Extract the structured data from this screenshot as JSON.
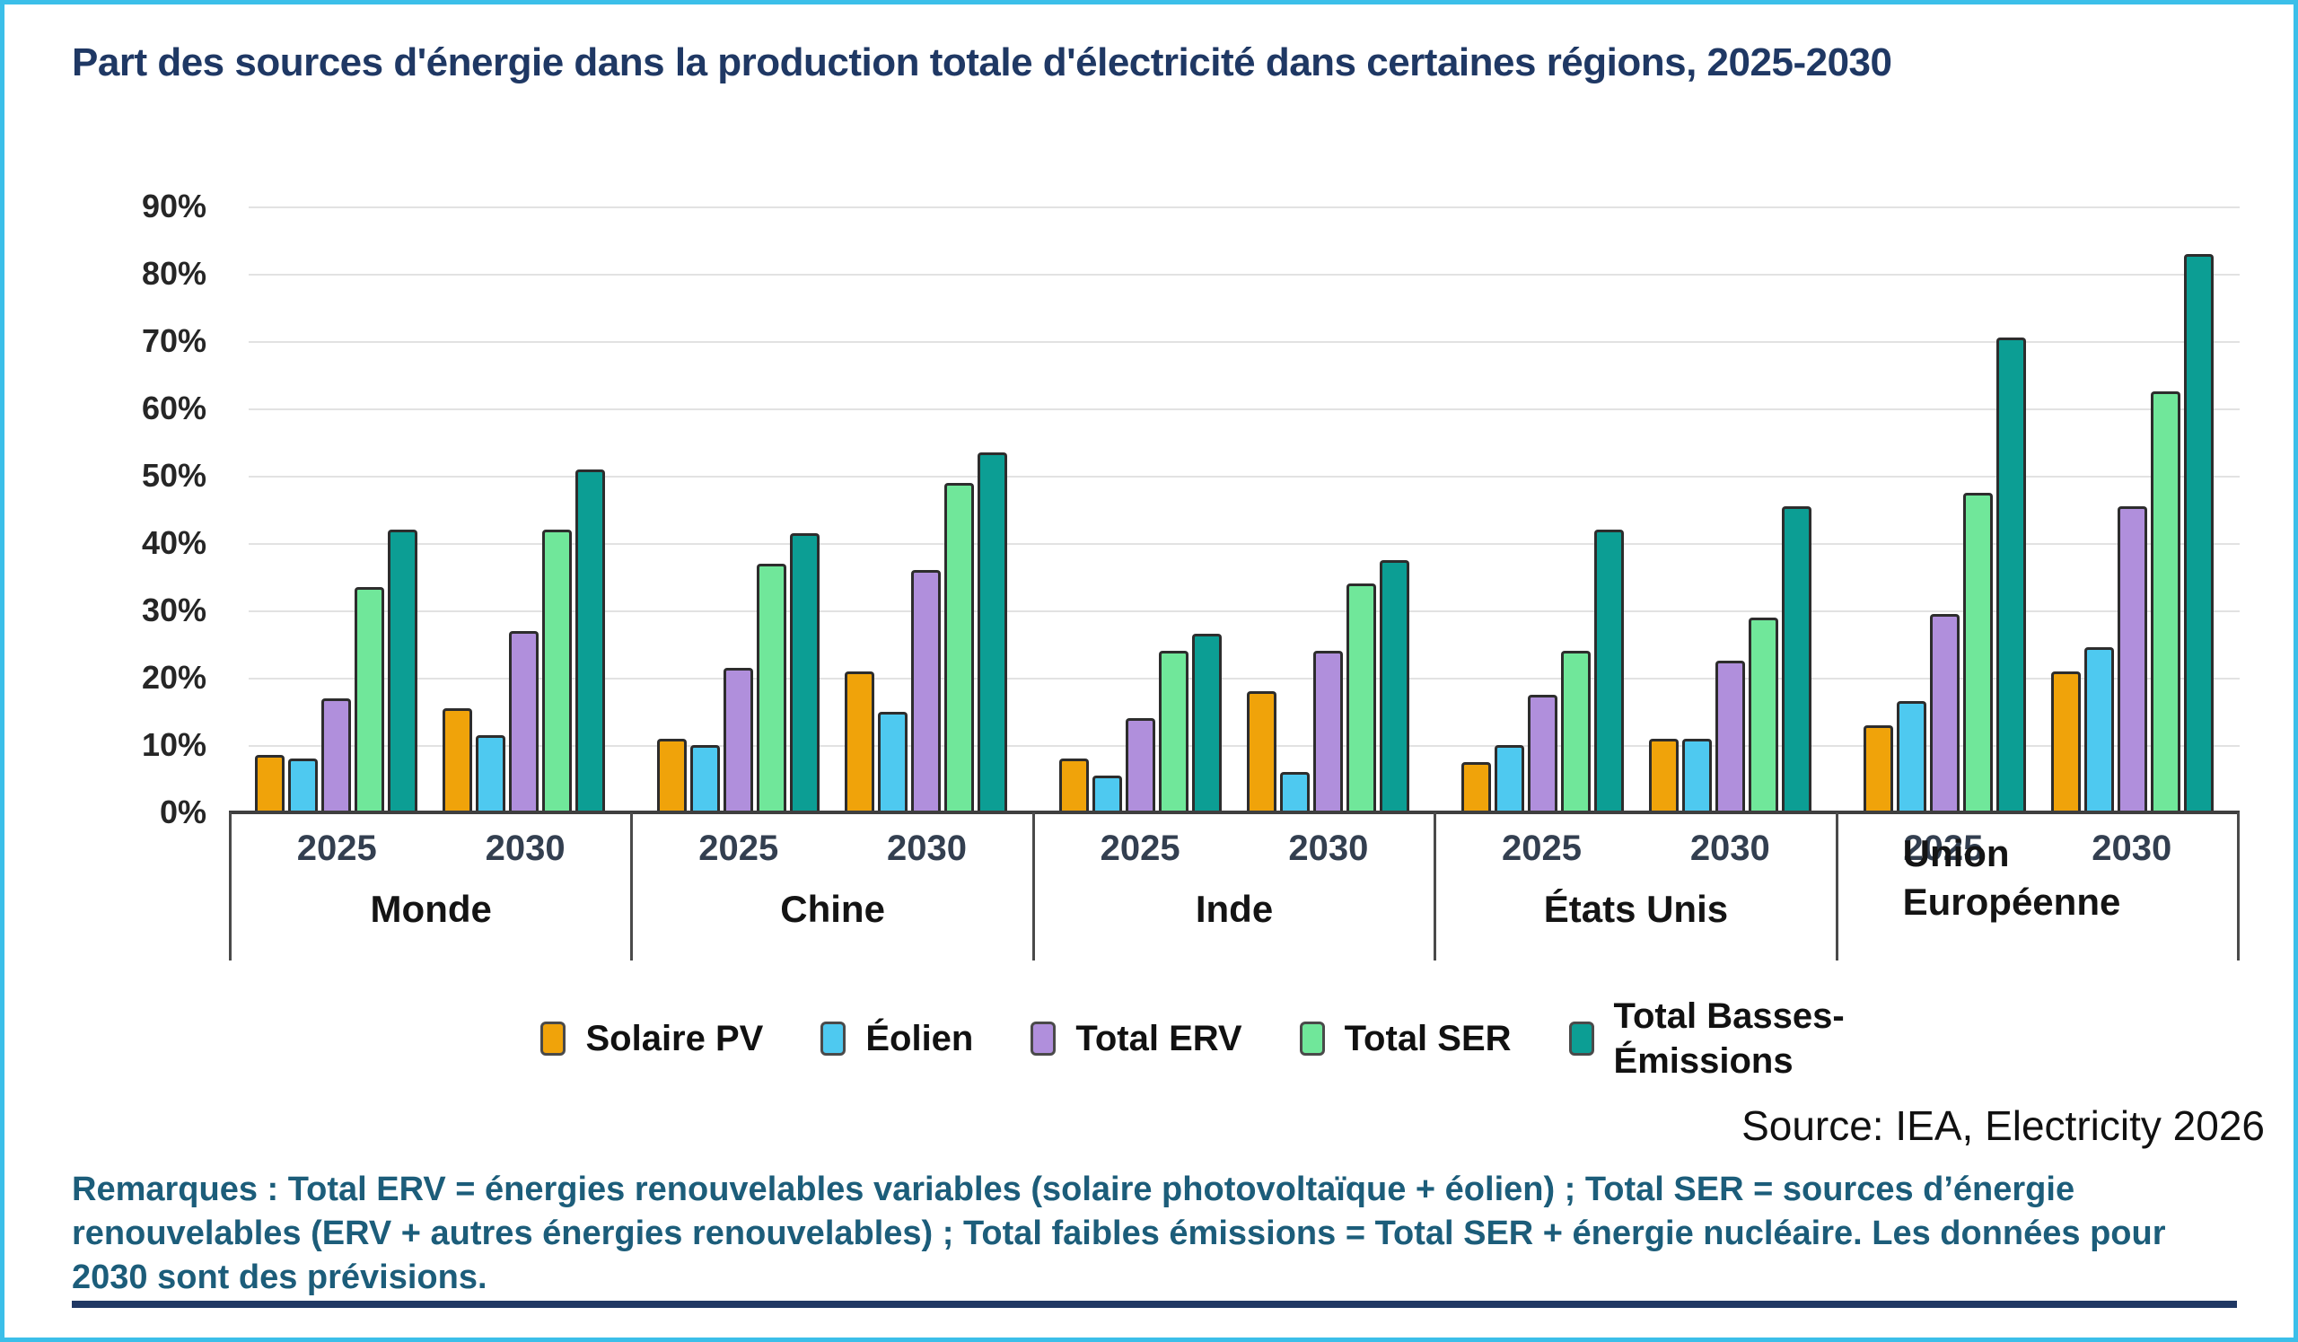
{
  "title": "Part des sources d'énergie dans la production totale d'électricité dans certaines régions, 2025-2030",
  "source": "Source: IEA, Electricity 2026",
  "remarks": "Remarques : Total ERV = énergies renouvelables variables (solaire photovoltaïque + éolien) ; Total SER = sources d’énergie renouvelables (ERV + autres énergies renouvelables) ; Total faibles émissions = Total SER + énergie nucléaire. Les données pour 2030 sont des prévisions.",
  "colors": {
    "title": "#1f3864",
    "remarks": "#1c5d7a",
    "page_border": "#3bbfe9",
    "gridline": "#e2e2e2"
  },
  "chart_data": {
    "type": "bar",
    "title": "Part des sources d'énergie dans la production totale d'électricité dans certaines régions, 2025-2030",
    "xlabel": "",
    "ylabel": "",
    "ylim": [
      0,
      90
    ],
    "y_tick_step": 10,
    "y_tick_suffix": "%",
    "grid": true,
    "legend_position": "bottom",
    "categories": [
      "Monde",
      "Chine",
      "Inde",
      "États Unis",
      "Union Européenne"
    ],
    "years": [
      "2025",
      "2030"
    ],
    "series": [
      {
        "name": "Solaire PV",
        "color": "#f0a30a"
      },
      {
        "name": "Éolien",
        "color": "#4ec9f0"
      },
      {
        "name": "Total ERV",
        "color": "#b08fdc"
      },
      {
        "name": "Total SER",
        "color": "#70e79a"
      },
      {
        "name": "Total Basses-Émissions",
        "color": "#0c9e94"
      }
    ],
    "values": {
      "Monde": {
        "2025": [
          8.5,
          8,
          17,
          33.5,
          42
        ],
        "2030": [
          15.5,
          11.5,
          27,
          42,
          51
        ]
      },
      "Chine": {
        "2025": [
          11,
          10,
          21.5,
          37,
          41.5
        ],
        "2030": [
          21,
          15,
          36,
          49,
          53.5
        ]
      },
      "Inde": {
        "2025": [
          8,
          5.5,
          14,
          24,
          26.5
        ],
        "2030": [
          18,
          6,
          24,
          34,
          37.5
        ]
      },
      "États Unis": {
        "2025": [
          7.5,
          10,
          17.5,
          24,
          42
        ],
        "2030": [
          11,
          11,
          22.5,
          29,
          45.5
        ]
      },
      "Union Européenne": {
        "2025": [
          13,
          16.5,
          29.5,
          47.5,
          70.5
        ],
        "2030": [
          21,
          24.5,
          45.5,
          62.5,
          83
        ]
      }
    }
  }
}
